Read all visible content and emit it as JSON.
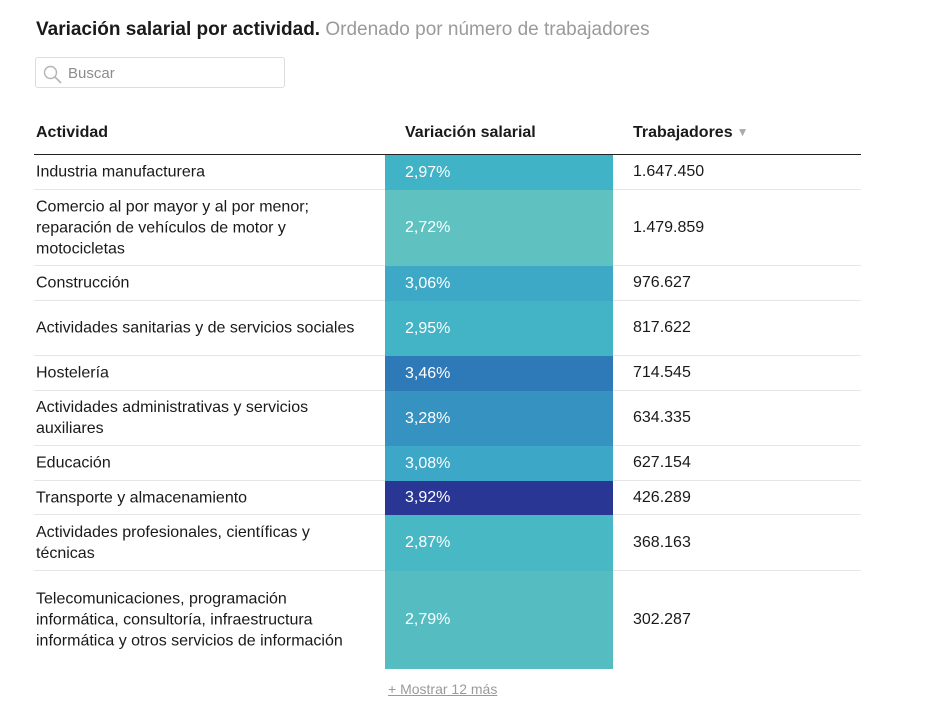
{
  "header": {
    "title": "Variación salarial por actividad.",
    "subtitle": "Ordenado por número de trabajadores"
  },
  "search": {
    "placeholder": "Buscar",
    "value": ""
  },
  "icons": {
    "search": "search-icon",
    "sort": "sort-desc-icon"
  },
  "table": {
    "columns": [
      "Actividad",
      "Variación salarial",
      "Trabajadores"
    ],
    "sort_indicator": "▼",
    "show_more_label": "+ Mostrar 12 más"
  },
  "colors": {
    "scale_low": "#5fc2c1",
    "scale_mid": "#3fa8c8",
    "scale_high": "#2a3694"
  },
  "chart_data": {
    "type": "table",
    "columns": [
      "Actividad",
      "Variación salarial",
      "Trabajadores"
    ],
    "rows": [
      {
        "actividad": "Industria manufacturera",
        "variacion": "2,97%",
        "variacion_value": 2.97,
        "trabajadores": "1.647.450",
        "trabajadores_value": 1647450,
        "color": "#41b3c6"
      },
      {
        "actividad": "Comercio al por mayor y al por menor; reparación de vehículos de motor y motocicletas",
        "variacion": "2,72%",
        "variacion_value": 2.72,
        "trabajadores": "1.479.859",
        "trabajadores_value": 1479859,
        "color": "#5fc2c1"
      },
      {
        "actividad": "Construcción",
        "variacion": "3,06%",
        "variacion_value": 3.06,
        "trabajadores": "976.627",
        "trabajadores_value": 976627,
        "color": "#3ea9c7"
      },
      {
        "actividad": "Actividades sanitarias y de servicios sociales",
        "variacion": "2,95%",
        "variacion_value": 2.95,
        "trabajadores": "817.622",
        "trabajadores_value": 817622,
        "color": "#42b4c6"
      },
      {
        "actividad": "Hostelería",
        "variacion": "3,46%",
        "variacion_value": 3.46,
        "trabajadores": "714.545",
        "trabajadores_value": 714545,
        "color": "#2e79b7"
      },
      {
        "actividad": "Actividades administrativas y servicios auxiliares",
        "variacion": "3,28%",
        "variacion_value": 3.28,
        "trabajadores": "634.335",
        "trabajadores_value": 634335,
        "color": "#3592c1"
      },
      {
        "actividad": "Educación",
        "variacion": "3,08%",
        "variacion_value": 3.08,
        "trabajadores": "627.154",
        "trabajadores_value": 627154,
        "color": "#3da7c8"
      },
      {
        "actividad": "Transporte y almacenamiento",
        "variacion": "3,92%",
        "variacion_value": 3.92,
        "trabajadores": "426.289",
        "trabajadores_value": 426289,
        "color": "#2a3694"
      },
      {
        "actividad": "Actividades profesionales, científicas y técnicas",
        "variacion": "2,87%",
        "variacion_value": 2.87,
        "trabajadores": "368.163",
        "trabajadores_value": 368163,
        "color": "#48b8c4"
      },
      {
        "actividad": "Telecomunicaciones, programación informática, consultoría, infraestructura informática y otros servicios de información",
        "variacion": "2,79%",
        "variacion_value": 2.79,
        "trabajadores": "302.287",
        "trabajadores_value": 302287,
        "color": "#55bdc2"
      }
    ]
  }
}
